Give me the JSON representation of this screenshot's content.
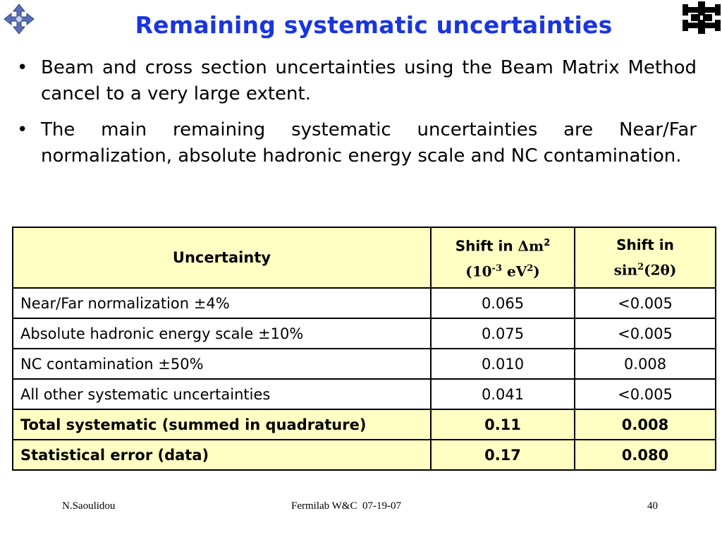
{
  "title": "Remaining systematic uncertainties",
  "bullets": [
    "Beam and cross section uncertainties using the Beam Matrix Method cancel to a very large extent.",
    "The main remaining systematic uncertainties are Near/Far normalization, absolute hadronic energy scale and NC contamination."
  ],
  "table": {
    "header": {
      "col1": "Uncertainty",
      "col2_line1": "Shift in ",
      "col2_symbol": "Δm",
      "col2_sup": "2",
      "col2_line2_a": "(10",
      "col2_line2_sup1": "-3",
      "col2_line2_b": " eV",
      "col2_line2_sup2": "2",
      "col2_line2_c": ")",
      "col3_line1": "Shift in",
      "col3_line2_a": "sin",
      "col3_line2_sup": "2",
      "col3_line2_b": "(2θ)"
    },
    "rows": [
      {
        "label": "Near/Far normalization ",
        "pm": "±",
        "pct": "4%",
        "dm2": "0.065",
        "sin2": "<0.005"
      },
      {
        "label": "Absolute hadronic energy scale ",
        "pm": "±",
        "pct": "10%",
        "dm2": "0.075",
        "sin2": "<0.005"
      },
      {
        "label": "NC contamination ",
        "pm": "±",
        "pct": "50%",
        "dm2": "0.010",
        "sin2": "0.008"
      },
      {
        "label": "All other systematic uncertainties",
        "pm": "",
        "pct": "",
        "dm2": "0.041",
        "sin2": "<0.005"
      }
    ],
    "totals": [
      {
        "label": "Total systematic (summed in quadrature)",
        "dm2": "0.11",
        "sin2": "0.008"
      },
      {
        "label": "Statistical error (data)",
        "dm2": "0.17",
        "sin2": "0.080"
      }
    ]
  },
  "footer": {
    "author": "N.Saoulidou",
    "event": "Fermilab W&C  07-19-07",
    "page": "40"
  },
  "colors": {
    "title": "#1a35e0",
    "header_fill": "#ffffc4",
    "logo_left": "#5a6fb8",
    "logo_right": "#000000"
  }
}
